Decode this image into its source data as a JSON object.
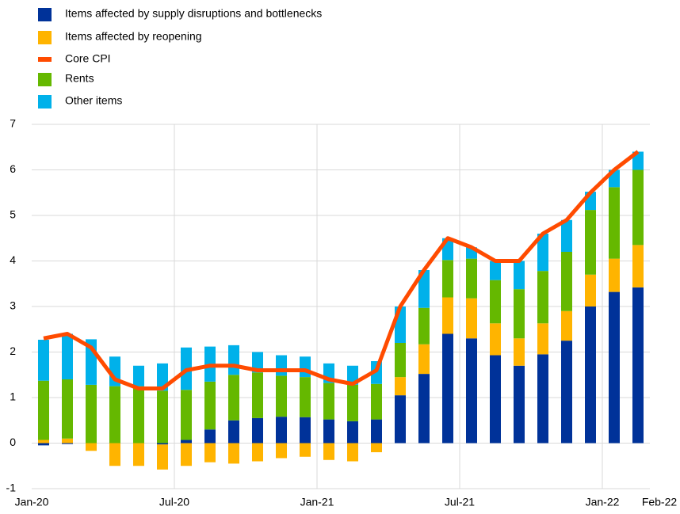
{
  "chart_data": {
    "type": "bar",
    "categories": [
      "Jan-20",
      null,
      null,
      null,
      null,
      null,
      "Jul-20",
      null,
      null,
      null,
      null,
      null,
      "Jan-21",
      null,
      null,
      null,
      null,
      null,
      "Jul-21",
      null,
      null,
      null,
      null,
      null,
      "Jan-22",
      "Feb-22"
    ],
    "series": [
      {
        "name": "Items affected by supply disruptions and bottlenecks",
        "type": "bar",
        "color": "#003299",
        "values": [
          -0.05,
          -0.02,
          0,
          0,
          0,
          -0.03,
          0.07,
          0.3,
          0.5,
          0.55,
          0.58,
          0.57,
          0.52,
          0.48,
          0.52,
          1.05,
          1.52,
          2.4,
          2.3,
          1.93,
          1.7,
          1.95,
          2.25,
          3.0,
          3.32,
          3.42
        ]
      },
      {
        "name": "Items affected by reopening",
        "type": "bar",
        "color": "#ffb400",
        "values": [
          0.07,
          0.1,
          -0.17,
          -0.5,
          -0.5,
          -0.55,
          -0.5,
          -0.42,
          -0.45,
          -0.4,
          -0.33,
          -0.3,
          -0.37,
          -0.4,
          -0.2,
          0.4,
          0.65,
          0.8,
          0.88,
          0.7,
          0.6,
          0.68,
          0.65,
          0.7,
          0.73,
          0.93
        ]
      },
      {
        "name": "Core CPI",
        "type": "line",
        "color": "#ff4b00",
        "values": [
          2.3,
          2.4,
          2.1,
          1.4,
          1.2,
          1.2,
          1.6,
          1.7,
          1.7,
          1.6,
          1.6,
          1.6,
          1.4,
          1.3,
          1.6,
          3.0,
          3.8,
          4.5,
          4.3,
          4.0,
          4.0,
          4.6,
          4.9,
          5.5,
          6.0,
          6.4
        ]
      },
      {
        "name": "Rents",
        "type": "bar",
        "color": "#65b800",
        "values": [
          1.3,
          1.3,
          1.28,
          1.25,
          1.25,
          1.15,
          1.1,
          1.05,
          1.0,
          1.0,
          0.9,
          0.88,
          0.8,
          0.8,
          0.78,
          0.75,
          0.8,
          0.82,
          0.87,
          0.95,
          1.08,
          1.15,
          1.3,
          1.42,
          1.57,
          1.65
        ]
      },
      {
        "name": "Other items",
        "type": "bar",
        "color": "#00b1ea",
        "values": [
          0.9,
          1.0,
          1.0,
          0.65,
          0.45,
          0.6,
          0.93,
          0.77,
          0.65,
          0.45,
          0.45,
          0.45,
          0.43,
          0.42,
          0.5,
          0.8,
          0.83,
          0.48,
          0.25,
          0.42,
          0.62,
          0.82,
          0.7,
          0.4,
          0.38,
          0.4
        ]
      }
    ],
    "ylim": [
      -1,
      7
    ],
    "yticks": [
      -1,
      0,
      1,
      2,
      3,
      4,
      5,
      6,
      7
    ],
    "grid": true,
    "legend": "top-left"
  }
}
